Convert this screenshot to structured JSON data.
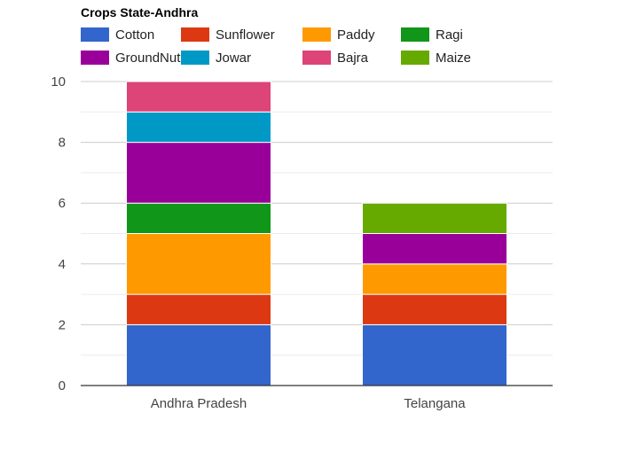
{
  "chart_data": {
    "type": "bar",
    "stacked": true,
    "title": "Crops State-Andhra",
    "xlabel": "",
    "ylabel": "",
    "categories": [
      "Andhra Pradesh",
      "Telangana"
    ],
    "ylim": [
      0,
      10
    ],
    "yticks": [
      0,
      2,
      4,
      6,
      8,
      10
    ],
    "grid": true,
    "legend_position": "top",
    "series": [
      {
        "name": "Cotton",
        "color": "#3366cc",
        "values": [
          2,
          2
        ]
      },
      {
        "name": "Sunflower",
        "color": "#dc3912",
        "values": [
          1,
          1
        ]
      },
      {
        "name": "Paddy",
        "color": "#ff9900",
        "values": [
          2,
          1
        ]
      },
      {
        "name": "Ragi",
        "color": "#109618",
        "values": [
          1,
          0
        ]
      },
      {
        "name": "GroundNut",
        "color": "#990099",
        "values": [
          2,
          1
        ]
      },
      {
        "name": "Jowar",
        "color": "#0099c6",
        "values": [
          1,
          0
        ]
      },
      {
        "name": "Bajra",
        "color": "#dd4477",
        "values": [
          1,
          0
        ]
      },
      {
        "name": "Maize",
        "color": "#66aa00",
        "values": [
          0,
          1
        ]
      }
    ]
  }
}
